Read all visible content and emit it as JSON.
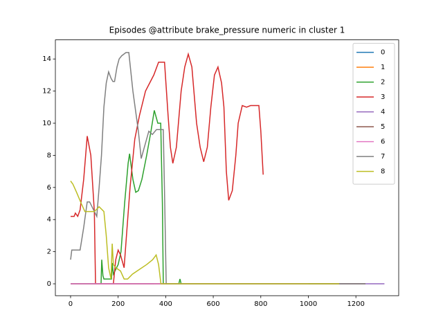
{
  "chart_data": {
    "type": "line",
    "title": "Episodes @attribute brake_pressure numeric in cluster 1",
    "xlim": [
      -64,
      1380
    ],
    "ylim": [
      -0.74,
      15.19
    ],
    "xticks": [
      0,
      200,
      400,
      600,
      800,
      1000,
      1200
    ],
    "yticks": [
      0,
      2,
      4,
      6,
      8,
      10,
      12,
      14
    ],
    "legend": "upper right",
    "series": [
      {
        "name": "0",
        "color": "#1f77b4",
        "x": [
          0,
          350
        ],
        "values": [
          0,
          0
        ]
      },
      {
        "name": "1",
        "color": "#ff7f0e",
        "x": [
          0,
          1130
        ],
        "values": [
          0,
          0
        ]
      },
      {
        "name": "2",
        "color": "#2ca02c",
        "x": [
          0,
          128,
          131,
          136,
          140,
          160,
          172,
          175,
          180,
          200,
          212,
          227,
          242,
          248,
          262,
          274,
          285,
          300,
          320,
          338,
          352,
          367,
          379,
          386,
          390,
          455,
          460,
          465,
          470
        ],
        "values": [
          0,
          0,
          1.5,
          0.5,
          0.3,
          0.3,
          0.3,
          1.3,
          0.6,
          1.2,
          2,
          5,
          7.5,
          8.1,
          6.5,
          5.7,
          5.8,
          6.5,
          8,
          9.5,
          10.8,
          10,
          10,
          5,
          0,
          0,
          0.3,
          0,
          0
        ]
      },
      {
        "name": "3",
        "color": "#d62728",
        "x": [
          0,
          15,
          20,
          30,
          40,
          55,
          70,
          85,
          100,
          105,
          120,
          180,
          190,
          200,
          210,
          225,
          235,
          250,
          270,
          290,
          315,
          350,
          370,
          395,
          410,
          420,
          430,
          445,
          465,
          480,
          495,
          510,
          530,
          545,
          560,
          575,
          590,
          605,
          620,
          635,
          645,
          655,
          665,
          680,
          695,
          705,
          722,
          740,
          757,
          792,
          800,
          810
        ],
        "values": [
          4.2,
          4.2,
          4.4,
          4.2,
          4.6,
          6.5,
          9.2,
          8,
          4.5,
          0,
          0,
          0,
          1.5,
          2.1,
          1.8,
          1,
          3,
          6,
          9,
          10.5,
          12,
          13,
          13.8,
          13.8,
          10.5,
          8.5,
          7.5,
          8.5,
          12,
          13.5,
          14.3,
          13.5,
          10,
          8.5,
          7.6,
          8.5,
          11,
          13,
          13.5,
          12.5,
          11,
          7,
          5.2,
          5.8,
          8,
          10,
          11.1,
          11,
          11.1,
          11.1,
          9.5,
          6.8
        ]
      },
      {
        "name": "4",
        "color": "#9467bd",
        "x": [
          0,
          1320
        ],
        "values": [
          0,
          0
        ]
      },
      {
        "name": "5",
        "color": "#8c564b",
        "x": [
          0,
          1240
        ],
        "values": [
          0,
          0
        ]
      },
      {
        "name": "6",
        "color": "#e377c2",
        "x": [
          0,
          1000
        ],
        "values": [
          0,
          0
        ]
      },
      {
        "name": "7",
        "color": "#7f7f7f",
        "x": [
          0,
          5,
          40,
          55,
          70,
          80,
          100,
          110,
          120,
          130,
          140,
          150,
          160,
          170,
          178,
          185,
          195,
          204,
          215,
          233,
          245,
          262,
          285,
          297,
          310,
          329,
          344,
          361,
          390,
          396,
          402,
          1240
        ],
        "values": [
          1.5,
          2.1,
          2.1,
          3.5,
          5.1,
          5.1,
          4.5,
          4.2,
          6,
          8,
          11,
          12.5,
          13.2,
          12.8,
          12.6,
          12.6,
          13.5,
          14,
          14.2,
          14.4,
          14.4,
          12,
          9.5,
          7.8,
          8.5,
          9.5,
          9.3,
          9.6,
          9.6,
          5,
          0,
          0
        ]
      },
      {
        "name": "8",
        "color": "#bcbd22",
        "x": [
          0,
          10,
          25,
          45,
          60,
          100,
          120,
          140,
          150,
          160,
          170,
          175,
          180,
          190,
          210,
          225,
          240,
          260,
          290,
          320,
          345,
          360,
          370,
          380,
          1130
        ],
        "values": [
          6.4,
          6.2,
          5.7,
          5,
          4.5,
          4.5,
          4.8,
          4.5,
          3,
          1,
          0.3,
          2.5,
          1.2,
          1,
          0.8,
          0.3,
          0.3,
          0.6,
          0.9,
          1.2,
          1.5,
          1.8,
          1.2,
          0,
          0
        ]
      }
    ]
  }
}
